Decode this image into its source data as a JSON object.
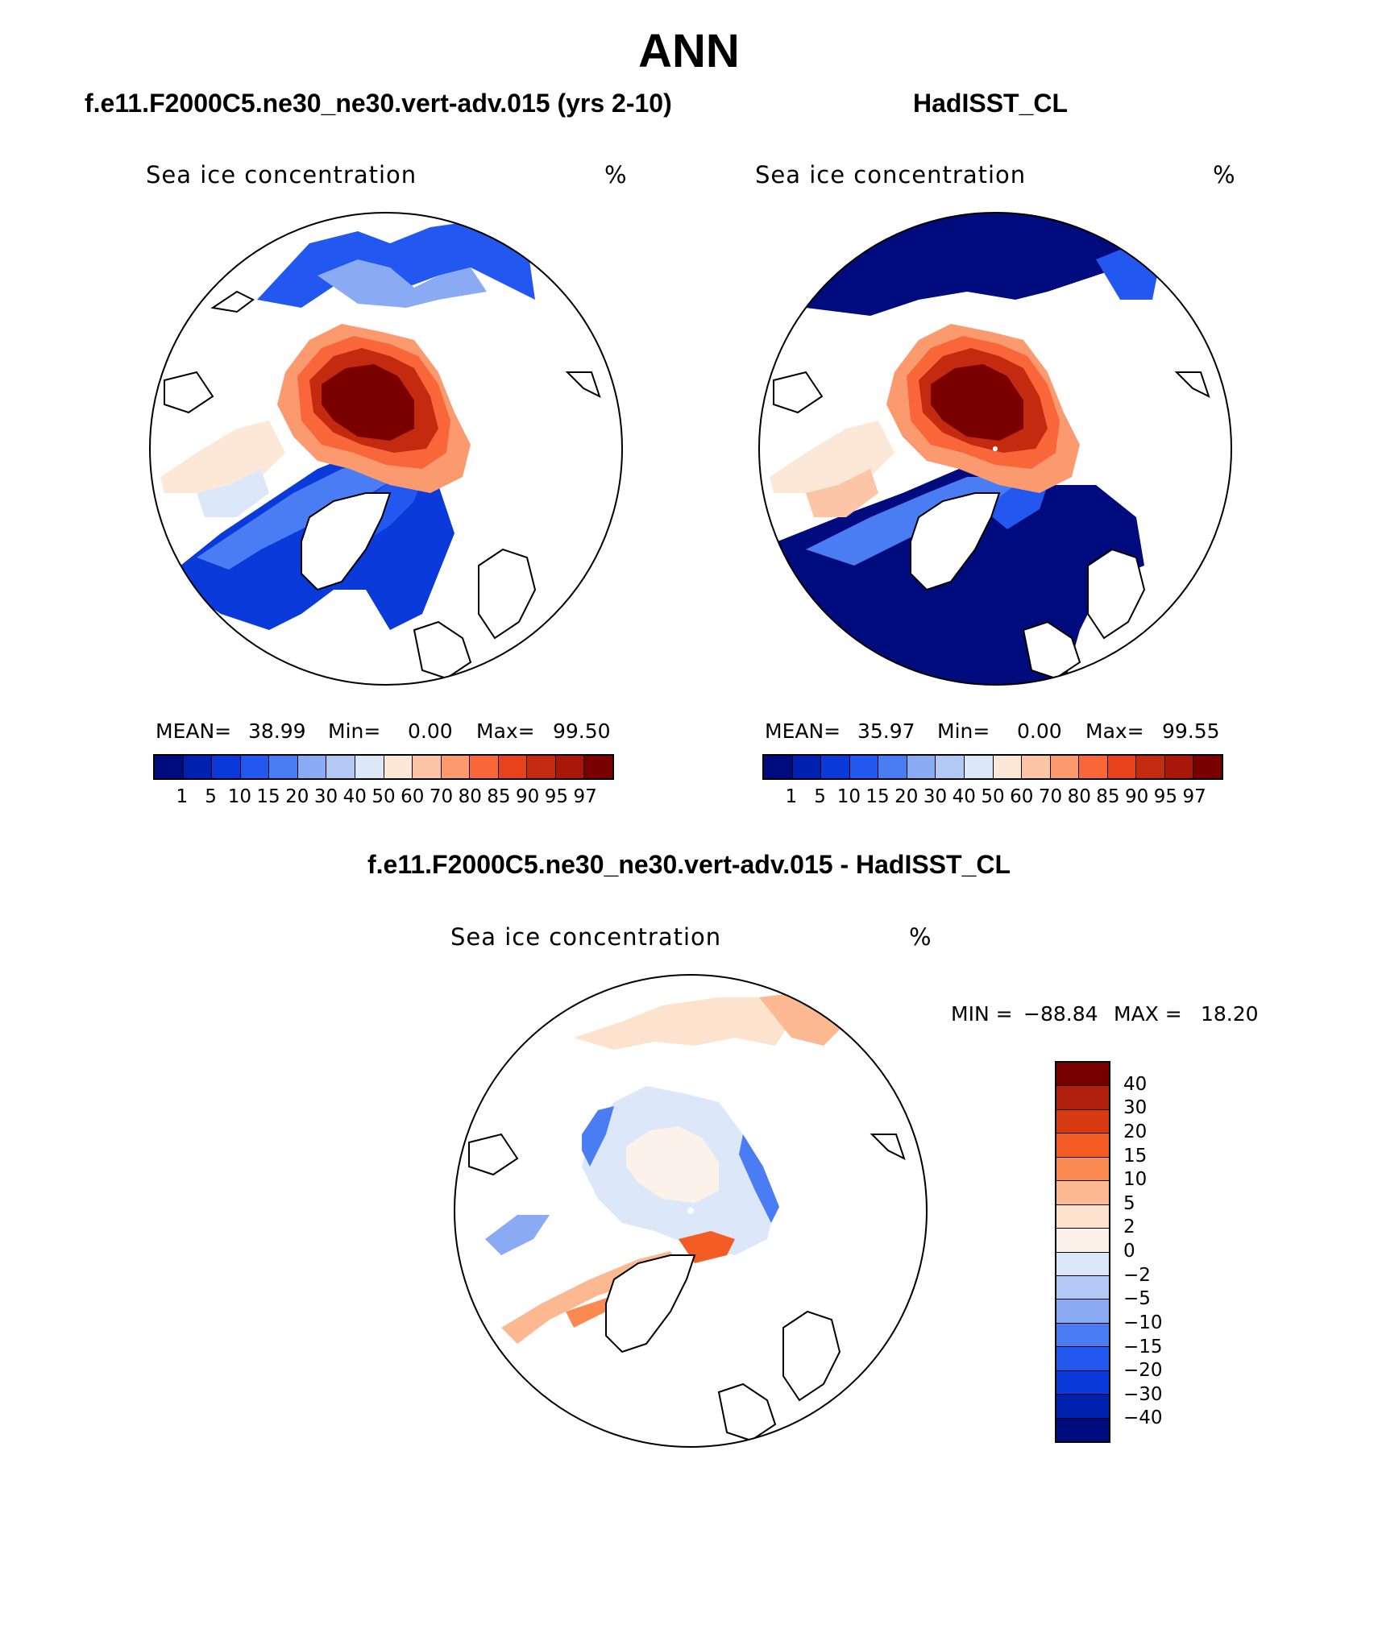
{
  "figure": {
    "title": "ANN",
    "panels": [
      {
        "id": "model",
        "subtitle": "f.e11.F2000C5.ne30_ne30.vert-adv.015 (yrs 2-10)",
        "field_label": "Sea ice concentration",
        "units": "%",
        "stats": {
          "mean_label": "MEAN=",
          "mean": "38.99",
          "min_label": "Min=",
          "min": "0.00",
          "max_label": "Max=",
          "max": "99.50"
        }
      },
      {
        "id": "obs",
        "subtitle": "HadISST_CL",
        "field_label": "Sea ice concentration",
        "units": "%",
        "stats": {
          "mean_label": "MEAN=",
          "mean": "35.97",
          "min_label": "Min=",
          "min": "0.00",
          "max_label": "Max=",
          "max": "99.55"
        }
      },
      {
        "id": "diff",
        "subtitle": "f.e11.F2000C5.ne30_ne30.vert-adv.015 - HadISST_CL",
        "field_label": "Sea ice concentration",
        "units": "%",
        "minmax": {
          "min_label": "MIN =",
          "min": "−88.84",
          "max_label": "MAX =",
          "max": "18.20"
        }
      }
    ],
    "abs_colorbar": {
      "levels": [
        "1",
        "5",
        "10",
        "15",
        "20",
        "30",
        "40",
        "50",
        "60",
        "70",
        "80",
        "85",
        "90",
        "95",
        "97"
      ],
      "colors": [
        "#000c7d",
        "#0021b0",
        "#0a3ad9",
        "#2258ef",
        "#4a7cf3",
        "#8aaaf3",
        "#b4c8f5",
        "#dce8fa",
        "#fde7d6",
        "#fcc6a6",
        "#fb9a6e",
        "#f8663a",
        "#e8421c",
        "#c42a0f",
        "#a8170a",
        "#7a0000"
      ]
    },
    "diff_colorbar": {
      "levels": [
        "40",
        "30",
        "20",
        "15",
        "10",
        "5",
        "2",
        "0",
        "−2",
        "−5",
        "−10",
        "−15",
        "−20",
        "−30",
        "−40"
      ],
      "colors": [
        "#7a0000",
        "#b0200c",
        "#d83a12",
        "#f55c24",
        "#fb8a52",
        "#fcb890",
        "#fde2ce",
        "#fdf2ea",
        "#dce8fa",
        "#b4c8f5",
        "#8aaaf3",
        "#4a7cf3",
        "#2258ef",
        "#0a3ad9",
        "#0021b0",
        "#000c7d"
      ]
    }
  }
}
